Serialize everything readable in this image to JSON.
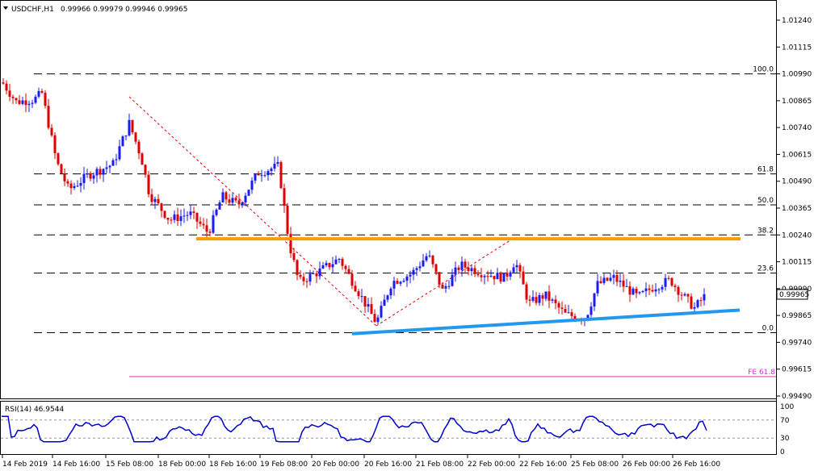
{
  "header": {
    "symbol": "USDCHF,H1",
    "ohlc": "0.99966 0.99979 0.99946 0.99965"
  },
  "rsi_header": {
    "label": "RSI(14) 46.9544"
  },
  "price_marker": {
    "value": "0.99965"
  },
  "colors": {
    "bull_candle": "#1a1aff",
    "bear_candle": "#e00000",
    "resistance": "#ff9900",
    "support": "#2299ee",
    "fib_dashes": "#000000",
    "fib_trend": "#e00000",
    "fe_line": "#cc33cc",
    "rsi_line": "#0000cc"
  },
  "chart_data": {
    "type": "candlestick",
    "price_axis": {
      "ticks": [
        "1.01240",
        "1.01115",
        "1.00990",
        "1.00865",
        "1.00740",
        "1.00615",
        "1.00490",
        "1.00365",
        "1.00240",
        "1.00115",
        "0.99990",
        "0.99865",
        "0.99740",
        "0.99615",
        "0.99490"
      ],
      "range": [
        0.994,
        1.0134
      ]
    },
    "time_axis": {
      "labels": [
        "14 Feb 2019",
        "14 Feb 16:00",
        "15 Feb 08:00",
        "18 Feb 00:00",
        "18 Feb 16:00",
        "19 Feb 08:00",
        "20 Feb 00:00",
        "20 Feb 16:00",
        "21 Feb 08:00",
        "22 Feb 00:00",
        "22 Feb 16:00",
        "25 Feb 08:00",
        "26 Feb 00:00",
        "26 Feb 16:00"
      ]
    },
    "fib_levels": [
      {
        "label": "100.0",
        "value": 1.0099
      },
      {
        "label": "61.8",
        "value": 1.00524
      },
      {
        "label": "50.0",
        "value": 1.0038
      },
      {
        "label": "38.2",
        "value": 1.0024
      },
      {
        "label": "23.6",
        "value": 1.00062
      },
      {
        "label": "0.0",
        "value": 0.99785
      }
    ],
    "fe_level": {
      "label": "FE 61.8",
      "value": 0.9958
    },
    "resistance_level": 1.00222,
    "support_line": {
      "start": 0.9978,
      "end": 0.9989
    },
    "rsi": {
      "levels": [
        "100",
        "70",
        "30",
        "0"
      ],
      "value": 46.9544
    }
  }
}
